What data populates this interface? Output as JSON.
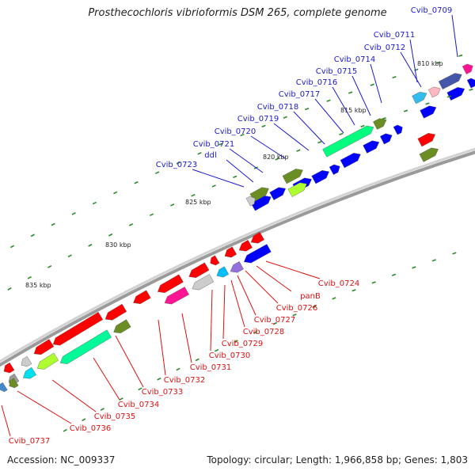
{
  "title": "Prosthecochloris vibrioformis DSM 265, complete genome",
  "footer": {
    "accession": "Accession: NC_009337",
    "summary": "Topology: circular; Length: 1,966,858 bp; Genes: 1,803"
  },
  "colors": {
    "backbone": "#9a9a9a",
    "forward_label": "#1a1acc",
    "reverse_label": "#dd1111",
    "tick_green": "#2a8a2a"
  },
  "scale_ticks": [
    "810 kbp",
    "815 kbp",
    "820 kbp",
    "825 kbp",
    "830 kbp",
    "835 kbp"
  ],
  "forward_gene_labels": [
    "Cvib_0709",
    "Cvib_0711",
    "Cvib_0712",
    "Cvib_0714",
    "Cvib_0715",
    "Cvib_0716",
    "Cvib_0717",
    "Cvib_0718",
    "Cvib_0719",
    "Cvib_0720",
    "Cvib_0721",
    "ddl",
    "Cvib_0723"
  ],
  "reverse_gene_labels": [
    "Cvib_0724",
    "panB",
    "Cvib_0726",
    "Cvib_0727",
    "Cvib_0728",
    "Cvib_0729",
    "Cvib_0730",
    "Cvib_0731",
    "Cvib_0732",
    "Cvib_0733",
    "Cvib_0734",
    "Cvib_0735",
    "Cvib_0736",
    "Cvib_0737"
  ]
}
